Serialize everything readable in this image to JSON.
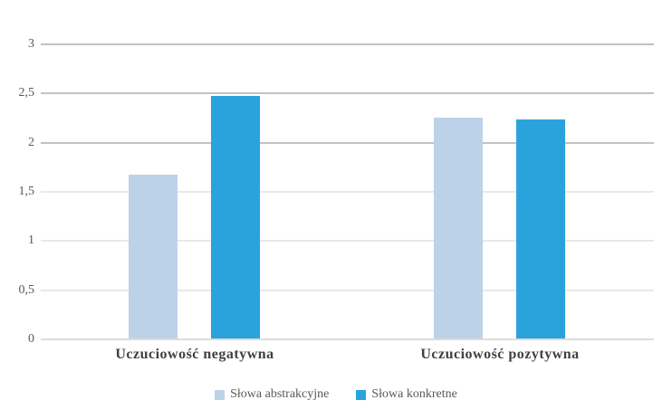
{
  "chart_data": {
    "type": "bar",
    "title": "",
    "xlabel": "",
    "ylabel": "",
    "categories": [
      "Uczuciowość negatywna",
      "Uczuciowość pozytywna"
    ],
    "series": [
      {
        "name": "Słowa abstrakcyjne",
        "color": "#bcd2e8",
        "values": [
          1.67,
          2.25
        ]
      },
      {
        "name": "Słowa konkretne",
        "color": "#2aa3dc",
        "values": [
          2.47,
          2.23
        ]
      }
    ],
    "ylim": [
      0,
      3
    ],
    "ytick_values": [
      3,
      2.5,
      2,
      1.5,
      1,
      0.5,
      0
    ],
    "ytick_labels": [
      "3",
      "2,5",
      "2",
      "1,5",
      "1",
      "0,5",
      "0"
    ],
    "grid": true,
    "gridline_color_major": "#c2c2c2",
    "gridline_color_minor": "#e9e9e9",
    "legend_position": "bottom"
  }
}
